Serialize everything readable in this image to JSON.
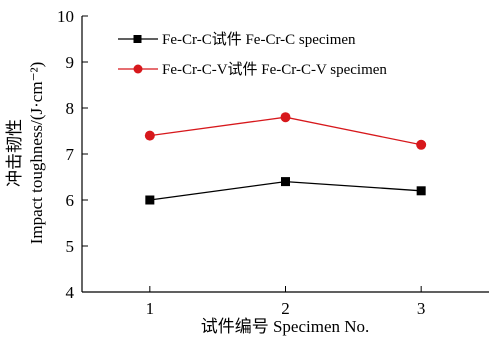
{
  "chart_data": {
    "type": "line",
    "categories": [
      "1",
      "2",
      "3"
    ],
    "x": [
      1,
      2,
      3
    ],
    "series": [
      {
        "name": "Fe-Cr-C试件 Fe-Cr-C specimen",
        "values": [
          6.0,
          6.4,
          6.2
        ],
        "color": "#000000",
        "marker": "square"
      },
      {
        "name": "Fe-Cr-C-V试件 Fe-Cr-C-V specimen",
        "values": [
          7.4,
          7.8,
          7.2
        ],
        "color": "#d7181c",
        "marker": "circle"
      }
    ],
    "xlabel": "试件编号 Specimen No.",
    "ylabel_line1": "冲击韧性",
    "ylabel_line2": "Impact toughness/(J·cm⁻²)",
    "ylim": [
      4,
      10
    ],
    "xlim": [
      0.5,
      3.5
    ],
    "yticks": [
      "4",
      "5",
      "6",
      "7",
      "8",
      "9",
      "10"
    ],
    "xticks": [
      "1",
      "2",
      "3"
    ],
    "grid": false,
    "legend_position": "top-left"
  }
}
